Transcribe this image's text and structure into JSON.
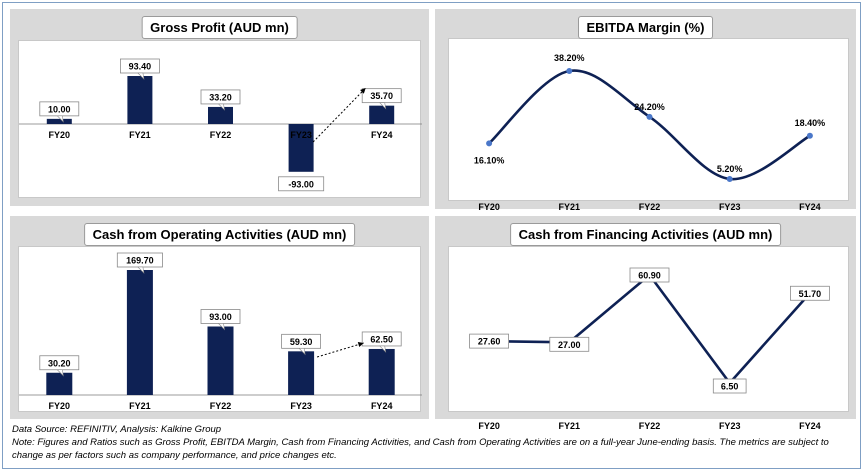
{
  "footer": {
    "source": "Data Source: REFINITIV, Analysis: Kalkine Group",
    "note": "Note: Figures and Ratios such as Gross Profit, EBITDA Margin, Cash from Financing Activities, and Cash from Operating Activities  are on a full-year June-ending basis. The metrics are subject to change as per factors such as company performance, and price changes etc."
  },
  "colors": {
    "bar": "#0e2154",
    "line": "#0e2154",
    "marker": "#4a77c9",
    "panel": "#d9d9d9"
  },
  "chart_data": [
    {
      "id": "gp",
      "type": "bar",
      "title": "Gross Profit (AUD mn)",
      "categories": [
        "FY20",
        "FY21",
        "FY22",
        "FY23",
        "FY24"
      ],
      "values": [
        10.0,
        93.4,
        33.2,
        -93.0,
        35.7
      ],
      "labels": [
        "10.00",
        "93.40",
        "33.20",
        "-93.00",
        "35.70"
      ],
      "annotation": "dotted trend arrow from FY23 to FY24"
    },
    {
      "id": "ebitda",
      "type": "line",
      "title": "EBITDA Margin (%)",
      "categories": [
        "FY20",
        "FY21",
        "FY22",
        "FY23",
        "FY24"
      ],
      "values": [
        16.1,
        38.2,
        24.2,
        5.2,
        18.4
      ],
      "labels": [
        "16.10%",
        "38.20%",
        "24.20%",
        "5.20%",
        "18.40%"
      ],
      "smooth": true
    },
    {
      "id": "cfo",
      "type": "bar",
      "title": "Cash from Operating Activities (AUD mn)",
      "categories": [
        "FY20",
        "FY21",
        "FY22",
        "FY23",
        "FY24"
      ],
      "values": [
        30.2,
        169.7,
        93.0,
        59.3,
        62.5
      ],
      "labels": [
        "30.20",
        "169.70",
        "93.00",
        "59.30",
        "62.50"
      ],
      "annotation": "dotted trend arrow from FY23 to FY24"
    },
    {
      "id": "cff",
      "type": "line",
      "title": "Cash from Financing Activities (AUD mn)",
      "categories": [
        "FY20",
        "FY21",
        "FY22",
        "FY23",
        "FY24"
      ],
      "values": [
        27.6,
        27.0,
        60.9,
        6.5,
        51.7
      ],
      "labels": [
        "27.60",
        "27.00",
        "60.90",
        "6.50",
        "51.70"
      ],
      "smooth": false
    }
  ]
}
